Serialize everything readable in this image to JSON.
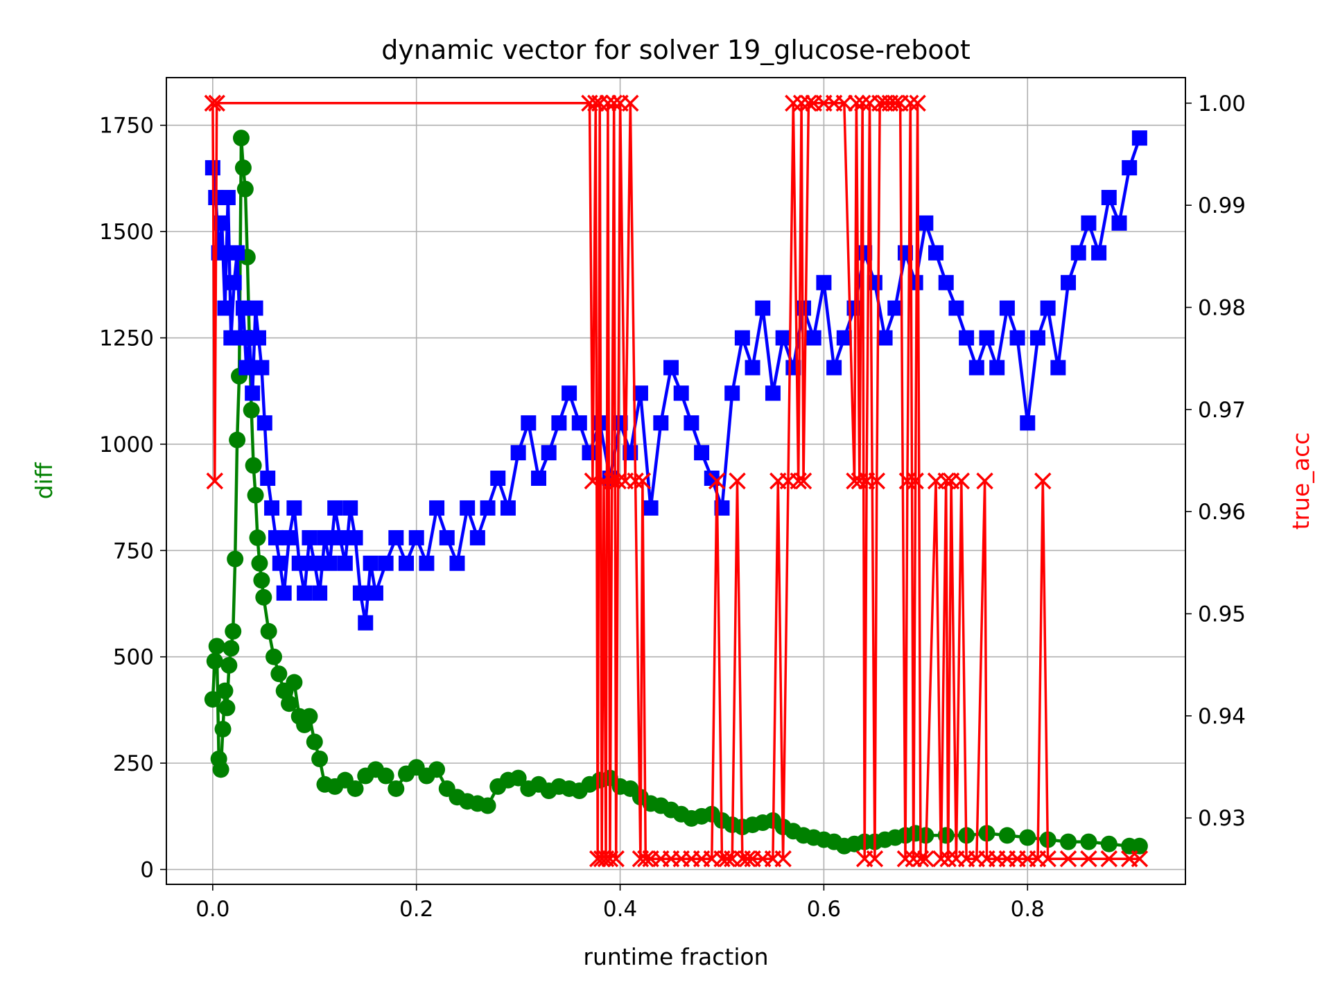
{
  "chart_data": {
    "type": "line",
    "title": "dynamic vector for solver 19_glucose-reboot",
    "xlabel": "runtime fraction",
    "ylabel_left": "diff",
    "ylabel_right": "true_acc",
    "xlim": [
      -0.0455,
      0.955
    ],
    "ylim_left": [
      -35,
      1862
    ],
    "ylim_right": [
      0.9235,
      1.0025
    ],
    "grid": true,
    "x_ticks": [
      {
        "value": 0.0,
        "label": "0.0"
      },
      {
        "value": 0.2,
        "label": "0.2"
      },
      {
        "value": 0.4,
        "label": "0.4"
      },
      {
        "value": 0.6,
        "label": "0.6"
      },
      {
        "value": 0.8,
        "label": "0.8"
      }
    ],
    "y_ticks_left": [
      {
        "value": 0,
        "label": "0"
      },
      {
        "value": 250,
        "label": "250"
      },
      {
        "value": 500,
        "label": "500"
      },
      {
        "value": 750,
        "label": "750"
      },
      {
        "value": 1000,
        "label": "1000"
      },
      {
        "value": 1250,
        "label": "1250"
      },
      {
        "value": 1500,
        "label": "1500"
      },
      {
        "value": 1750,
        "label": "1750"
      }
    ],
    "y_ticks_right": [
      {
        "value": 0.93,
        "label": "0.93"
      },
      {
        "value": 0.94,
        "label": "0.94"
      },
      {
        "value": 0.95,
        "label": "0.95"
      },
      {
        "value": 0.96,
        "label": "0.96"
      },
      {
        "value": 0.97,
        "label": "0.97"
      },
      {
        "value": 0.98,
        "label": "0.98"
      },
      {
        "value": 0.99,
        "label": "0.99"
      },
      {
        "value": 1.0,
        "label": "1.00"
      }
    ],
    "series": [
      {
        "axis": "left",
        "color": "#008000",
        "marker": "circle",
        "x": [
          0.0,
          0.002,
          0.004,
          0.006,
          0.008,
          0.01,
          0.012,
          0.014,
          0.016,
          0.018,
          0.02,
          0.022,
          0.024,
          0.026,
          0.028,
          0.03,
          0.032,
          0.034,
          0.036,
          0.038,
          0.04,
          0.042,
          0.044,
          0.046,
          0.048,
          0.05,
          0.055,
          0.06,
          0.065,
          0.07,
          0.075,
          0.08,
          0.085,
          0.09,
          0.095,
          0.1,
          0.105,
          0.11,
          0.12,
          0.13,
          0.14,
          0.15,
          0.16,
          0.17,
          0.18,
          0.19,
          0.2,
          0.21,
          0.22,
          0.23,
          0.24,
          0.25,
          0.26,
          0.27,
          0.28,
          0.29,
          0.3,
          0.31,
          0.32,
          0.33,
          0.34,
          0.35,
          0.36,
          0.37,
          0.38,
          0.39,
          0.4,
          0.41,
          0.42,
          0.43,
          0.44,
          0.45,
          0.46,
          0.47,
          0.48,
          0.49,
          0.5,
          0.51,
          0.52,
          0.53,
          0.54,
          0.55,
          0.56,
          0.57,
          0.58,
          0.59,
          0.6,
          0.61,
          0.62,
          0.63,
          0.64,
          0.65,
          0.66,
          0.67,
          0.68,
          0.69,
          0.7,
          0.72,
          0.74,
          0.76,
          0.78,
          0.8,
          0.82,
          0.84,
          0.86,
          0.88,
          0.9,
          0.91
        ],
        "y": [
          400,
          490,
          525,
          260,
          235,
          330,
          420,
          380,
          480,
          520,
          560,
          730,
          1010,
          1160,
          1720,
          1650,
          1600,
          1440,
          1250,
          1080,
          950,
          880,
          780,
          720,
          680,
          640,
          560,
          500,
          460,
          420,
          390,
          440,
          360,
          340,
          360,
          300,
          260,
          200,
          195,
          210,
          190,
          220,
          235,
          220,
          190,
          225,
          240,
          220,
          235,
          190,
          170,
          160,
          155,
          150,
          195,
          210,
          215,
          190,
          200,
          185,
          195,
          190,
          185,
          200,
          210,
          215,
          195,
          190,
          170,
          155,
          150,
          140,
          130,
          120,
          125,
          130,
          115,
          105,
          100,
          105,
          110,
          115,
          100,
          90,
          80,
          75,
          70,
          65,
          55,
          60,
          65,
          65,
          70,
          75,
          80,
          85,
          80,
          80,
          80,
          85,
          80,
          75,
          70,
          65,
          65,
          60,
          55,
          55
        ]
      },
      {
        "axis": "left",
        "color": "#0000ff",
        "marker": "square",
        "x": [
          0.0,
          0.003,
          0.006,
          0.009,
          0.012,
          0.015,
          0.018,
          0.021,
          0.024,
          0.027,
          0.03,
          0.033,
          0.036,
          0.039,
          0.042,
          0.045,
          0.048,
          0.051,
          0.054,
          0.058,
          0.062,
          0.066,
          0.07,
          0.075,
          0.08,
          0.085,
          0.09,
          0.095,
          0.1,
          0.105,
          0.11,
          0.115,
          0.12,
          0.125,
          0.13,
          0.135,
          0.14,
          0.145,
          0.15,
          0.155,
          0.16,
          0.17,
          0.18,
          0.19,
          0.2,
          0.21,
          0.22,
          0.23,
          0.24,
          0.25,
          0.26,
          0.27,
          0.28,
          0.29,
          0.3,
          0.31,
          0.32,
          0.33,
          0.34,
          0.35,
          0.36,
          0.37,
          0.38,
          0.39,
          0.4,
          0.41,
          0.42,
          0.43,
          0.44,
          0.45,
          0.46,
          0.47,
          0.48,
          0.49,
          0.5,
          0.51,
          0.52,
          0.53,
          0.54,
          0.55,
          0.56,
          0.57,
          0.58,
          0.59,
          0.6,
          0.61,
          0.62,
          0.63,
          0.64,
          0.65,
          0.66,
          0.67,
          0.68,
          0.69,
          0.7,
          0.71,
          0.72,
          0.73,
          0.74,
          0.75,
          0.76,
          0.77,
          0.78,
          0.79,
          0.8,
          0.81,
          0.82,
          0.83,
          0.84,
          0.85,
          0.86,
          0.87,
          0.88,
          0.89,
          0.9,
          0.91
        ],
        "y": [
          1650,
          1580,
          1450,
          1520,
          1320,
          1580,
          1250,
          1380,
          1450,
          1250,
          1320,
          1180,
          1250,
          1120,
          1320,
          1250,
          1180,
          1050,
          920,
          850,
          780,
          720,
          650,
          780,
          850,
          720,
          650,
          780,
          720,
          650,
          780,
          720,
          850,
          780,
          720,
          850,
          780,
          650,
          580,
          720,
          650,
          720,
          780,
          720,
          780,
          720,
          850,
          780,
          720,
          850,
          780,
          850,
          920,
          850,
          980,
          1050,
          920,
          980,
          1050,
          1120,
          1050,
          980,
          1050,
          920,
          1050,
          980,
          1120,
          850,
          1050,
          1180,
          1120,
          1050,
          980,
          920,
          850,
          1120,
          1250,
          1180,
          1320,
          1120,
          1250,
          1180,
          1320,
          1250,
          1380,
          1180,
          1250,
          1320,
          1450,
          1380,
          1250,
          1320,
          1450,
          1380,
          1520,
          1450,
          1380,
          1320,
          1250,
          1180,
          1250,
          1180,
          1320,
          1250,
          1050,
          1250,
          1320,
          1180,
          1380,
          1450,
          1520,
          1450,
          1580,
          1520,
          1650,
          1720
        ]
      },
      {
        "axis": "right",
        "color": "#ff0000",
        "marker": "x",
        "x": [
          0.0,
          0.002,
          0.004,
          0.37,
          0.373,
          0.376,
          0.378,
          0.38,
          0.382,
          0.384,
          0.386,
          0.388,
          0.39,
          0.392,
          0.394,
          0.396,
          0.398,
          0.4,
          0.405,
          0.41,
          0.415,
          0.42,
          0.422,
          0.425,
          0.43,
          0.44,
          0.45,
          0.46,
          0.47,
          0.48,
          0.49,
          0.495,
          0.5,
          0.505,
          0.51,
          0.515,
          0.52,
          0.525,
          0.53,
          0.54,
          0.55,
          0.555,
          0.56,
          0.565,
          0.57,
          0.575,
          0.578,
          0.58,
          0.585,
          0.59,
          0.6,
          0.61,
          0.62,
          0.63,
          0.632,
          0.635,
          0.638,
          0.64,
          0.642,
          0.645,
          0.65,
          0.652,
          0.655,
          0.66,
          0.665,
          0.67,
          0.675,
          0.68,
          0.682,
          0.685,
          0.688,
          0.69,
          0.692,
          0.695,
          0.7,
          0.71,
          0.715,
          0.72,
          0.722,
          0.725,
          0.73,
          0.735,
          0.74,
          0.75,
          0.758,
          0.76,
          0.77,
          0.78,
          0.79,
          0.8,
          0.81,
          0.815,
          0.82,
          0.84,
          0.86,
          0.88,
          0.9,
          0.91
        ],
        "y": [
          1.0,
          0.963,
          1.0,
          1.0,
          0.963,
          1.0,
          0.926,
          1.0,
          0.926,
          0.963,
          0.926,
          1.0,
          0.926,
          0.963,
          1.0,
          0.926,
          0.963,
          1.0,
          0.963,
          1.0,
          0.963,
          0.926,
          0.963,
          0.926,
          0.926,
          0.926,
          0.926,
          0.926,
          0.926,
          0.926,
          0.926,
          0.963,
          0.926,
          0.926,
          0.926,
          0.963,
          0.926,
          0.926,
          0.926,
          0.926,
          0.926,
          0.963,
          0.926,
          0.963,
          1.0,
          0.963,
          1.0,
          0.963,
          1.0,
          1.0,
          1.0,
          1.0,
          1.0,
          0.963,
          1.0,
          0.963,
          1.0,
          0.926,
          0.963,
          1.0,
          0.926,
          0.963,
          1.0,
          1.0,
          1.0,
          1.0,
          1.0,
          0.926,
          0.963,
          1.0,
          0.926,
          0.963,
          1.0,
          0.926,
          0.926,
          0.963,
          0.926,
          0.963,
          0.926,
          0.963,
          0.926,
          0.963,
          0.926,
          0.926,
          0.963,
          0.926,
          0.926,
          0.926,
          0.926,
          0.926,
          0.926,
          0.963,
          0.926,
          0.926,
          0.926,
          0.926,
          0.926,
          0.926
        ]
      }
    ]
  }
}
